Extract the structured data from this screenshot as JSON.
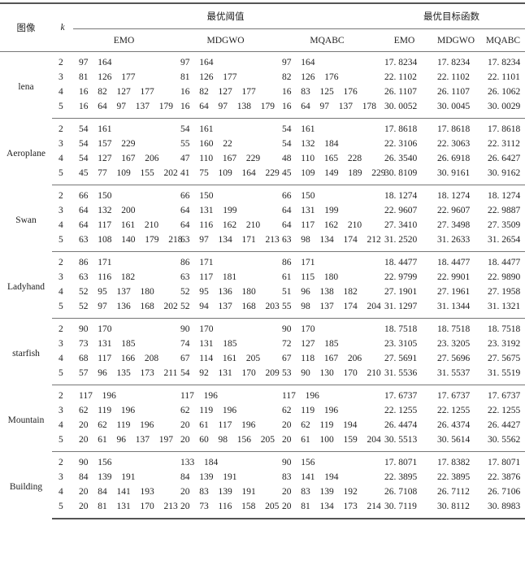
{
  "header": {
    "image": "图像",
    "k": "k",
    "threshold_group": "最优阈值",
    "objective_group": "最优目标函数",
    "methods": [
      "EMO",
      "MDGWO",
      "MQABC"
    ]
  },
  "groups": [
    {
      "image": "lena",
      "rows": [
        {
          "k": "2",
          "thr": [
            "97  164",
            "97  164",
            "97  164"
          ],
          "obj": [
            "17. 8234",
            "17. 8234",
            "17. 8234"
          ]
        },
        {
          "k": "3",
          "thr": [
            "81  126  177",
            "81  126  177",
            "82  126  176"
          ],
          "obj": [
            "22. 1102",
            "22. 1102",
            "22. 1101"
          ]
        },
        {
          "k": "4",
          "thr": [
            "16  82  127  177",
            "16  82  127  177",
            "16  83  125  176"
          ],
          "obj": [
            "26. 1107",
            "26. 1107",
            "26. 1062"
          ]
        },
        {
          "k": "5",
          "thr": [
            "16  64  97  137  179",
            "16  64  97  138  179",
            "16  64  97  137  178"
          ],
          "obj": [
            "30. 0052",
            "30. 0045",
            "30. 0029"
          ]
        }
      ]
    },
    {
      "image": "Aeroplane",
      "rows": [
        {
          "k": "2",
          "thr": [
            "54  161",
            "54  161",
            "54  161"
          ],
          "obj": [
            "17. 8618",
            "17. 8618",
            "17. 8618"
          ]
        },
        {
          "k": "3",
          "thr": [
            "54  157  229",
            "55  160  22",
            "54  132  184"
          ],
          "obj": [
            "22. 3106",
            "22. 3063",
            "22. 3112"
          ]
        },
        {
          "k": "4",
          "thr": [
            "54  127  167  206",
            "47  110  167  229",
            "48  110  165  228"
          ],
          "obj": [
            "26. 3540",
            "26. 6918",
            "26. 6427"
          ]
        },
        {
          "k": "5",
          "thr": [
            "45  77  109  155  202",
            "41  75  109  164  229",
            "45  109  149  189  229"
          ],
          "obj": [
            "30. 8109",
            "30. 9161",
            "30. 9162"
          ]
        }
      ]
    },
    {
      "image": "Swan",
      "rows": [
        {
          "k": "2",
          "thr": [
            "66  150",
            "66  150",
            "66  150"
          ],
          "obj": [
            "18. 1274",
            "18. 1274",
            "18. 1274"
          ]
        },
        {
          "k": "3",
          "thr": [
            "64  132  200",
            "64  131  199",
            "64  131  199"
          ],
          "obj": [
            "22. 9607",
            "22. 9607",
            "22. 9887"
          ]
        },
        {
          "k": "4",
          "thr": [
            "64  117  161  210",
            "64  116  162  210",
            "64  117  162  210"
          ],
          "obj": [
            "27. 3410",
            "27. 3498",
            "27. 3509"
          ]
        },
        {
          "k": "5",
          "thr": [
            "63  108  140  179  218",
            "63  97  134  171  213",
            "63  98  134  174  212"
          ],
          "obj": [
            "31. 2520",
            "31. 2633",
            "31. 2654"
          ]
        }
      ]
    },
    {
      "image": "Ladyhand",
      "rows": [
        {
          "k": "2",
          "thr": [
            "86  171",
            "86  171",
            "86  171"
          ],
          "obj": [
            "18. 4477",
            "18. 4477",
            "18. 4477"
          ]
        },
        {
          "k": "3",
          "thr": [
            "63  116  182",
            "63  117  181",
            "61  115  180"
          ],
          "obj": [
            "22. 9799",
            "22. 9901",
            "22. 9890"
          ]
        },
        {
          "k": "4",
          "thr": [
            "52  95  137  180",
            "52  95  136  180",
            "51  96  138  182"
          ],
          "obj": [
            "27. 1901",
            "27. 1961",
            "27. 1958"
          ]
        },
        {
          "k": "5",
          "thr": [
            "52  97  136  168  202",
            "52  94  137  168  203",
            "55  98  137  174  204"
          ],
          "obj": [
            "31. 1297",
            "31. 1344",
            "31. 1321"
          ]
        }
      ]
    },
    {
      "image": "starfish",
      "rows": [
        {
          "k": "2",
          "thr": [
            "90  170",
            "90  170",
            "90  170"
          ],
          "obj": [
            "18. 7518",
            "18. 7518",
            "18. 7518"
          ]
        },
        {
          "k": "3",
          "thr": [
            "73  131  185",
            "74  131  185",
            "72  127  185"
          ],
          "obj": [
            "23. 3105",
            "23. 3205",
            "23. 3192"
          ]
        },
        {
          "k": "4",
          "thr": [
            "68  117  166  208",
            "67  114  161  205",
            "67  118  167  206"
          ],
          "obj": [
            "27. 5691",
            "27. 5696",
            "27. 5675"
          ]
        },
        {
          "k": "5",
          "thr": [
            "57  96  135  173  211",
            "54  92  131  170  209",
            "53  90  130  170  210"
          ],
          "obj": [
            "31. 5536",
            "31. 5537",
            "31. 5519"
          ]
        }
      ]
    },
    {
      "image": "Mountain",
      "rows": [
        {
          "k": "2",
          "thr": [
            "117  196",
            "117  196",
            "117  196"
          ],
          "obj": [
            "17. 6737",
            "17. 6737",
            "17. 6737"
          ]
        },
        {
          "k": "3",
          "thr": [
            "62  119  196",
            "62  119  196",
            "62  119  196"
          ],
          "obj": [
            "22. 1255",
            "22. 1255",
            "22. 1255"
          ]
        },
        {
          "k": "4",
          "thr": [
            "20  62  119  196",
            "20  61  117  196",
            "20  62  119  194"
          ],
          "obj": [
            "26. 4474",
            "26. 4374",
            "26. 4427"
          ]
        },
        {
          "k": "5",
          "thr": [
            "20  61  96  137  197",
            "20  60  98  156  205",
            "20  61  100  159  204"
          ],
          "obj": [
            "30. 5513",
            "30. 5614",
            "30. 5562"
          ]
        }
      ]
    },
    {
      "image": "Building",
      "rows": [
        {
          "k": "2",
          "thr": [
            "90  156",
            "133  184",
            "90  156"
          ],
          "obj": [
            "17. 8071",
            "17. 8382",
            "17. 8071"
          ]
        },
        {
          "k": "3",
          "thr": [
            "84  139  191",
            "84  139  191",
            "83  141  194"
          ],
          "obj": [
            "22. 3895",
            "22. 3895",
            "22. 3876"
          ]
        },
        {
          "k": "4",
          "thr": [
            "20  84  141  193",
            "20  83  139  191",
            "20  83  139  192"
          ],
          "obj": [
            "26. 7108",
            "26. 7112",
            "26. 7106"
          ]
        },
        {
          "k": "5",
          "thr": [
            "20  81  131  170  213",
            "20  73  116  158  205",
            "20  81  134  173  214"
          ],
          "obj": [
            "30. 7119",
            "30. 8112",
            "30. 8983"
          ]
        }
      ]
    }
  ]
}
